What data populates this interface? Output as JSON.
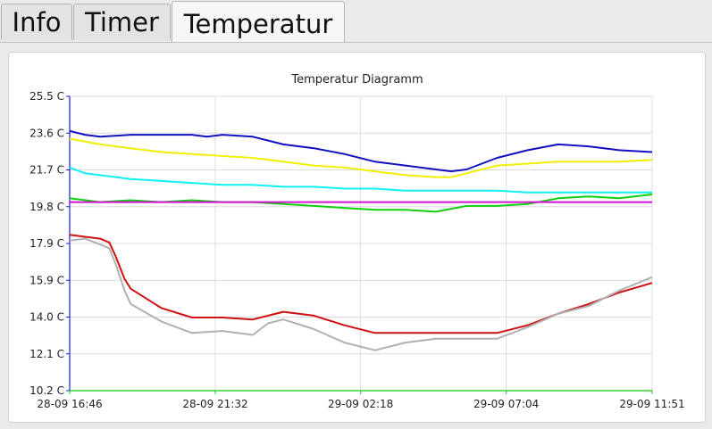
{
  "tabs": [
    {
      "label": "Info",
      "active": false
    },
    {
      "label": "Timer",
      "active": false
    },
    {
      "label": "Temperatur",
      "active": true
    }
  ],
  "chart_data": {
    "type": "line",
    "title": "Temperatur Diagramm",
    "xlabel": "",
    "ylabel": "",
    "grid": true,
    "legend": "none",
    "ylim": [
      10.2,
      25.5
    ],
    "y_ticks": [
      "25.5 C",
      "23.6 C",
      "21.7 C",
      "19.8 C",
      "17.9 C",
      "15.9 C",
      "14.0 C",
      "12.1 C",
      "10.2 C"
    ],
    "x_ticks": [
      "28-09 16:46",
      "28-09 21:32",
      "29-09 02:18",
      "29-09 07:04",
      "29-09 11:51"
    ],
    "x_hours": [
      0,
      4.77,
      9.53,
      14.3,
      19.08
    ],
    "series": [
      {
        "color": "#1010c0",
        "x": [
          0,
          0.5,
          1,
          2,
          3,
          4,
          4.5,
          5,
          6,
          7,
          8,
          9,
          10,
          11,
          12,
          12.5,
          13,
          14,
          15,
          16,
          17,
          18,
          19.08
        ],
        "y": [
          23.7,
          23.5,
          23.4,
          23.5,
          23.5,
          23.5,
          23.4,
          23.5,
          23.4,
          23.0,
          22.8,
          22.5,
          22.1,
          21.9,
          21.7,
          21.6,
          21.7,
          22.3,
          22.7,
          23.0,
          22.9,
          22.7,
          22.6
        ]
      },
      {
        "color": "#f0f000",
        "x": [
          0,
          1,
          2,
          3,
          4,
          5,
          6,
          7,
          8,
          9,
          10,
          11,
          12,
          12.5,
          13,
          14,
          15,
          16,
          17,
          18,
          19.08
        ],
        "y": [
          23.3,
          23.0,
          22.8,
          22.6,
          22.5,
          22.4,
          22.3,
          22.1,
          21.9,
          21.8,
          21.6,
          21.4,
          21.3,
          21.3,
          21.5,
          21.9,
          22.0,
          22.1,
          22.1,
          22.1,
          22.2
        ]
      },
      {
        "color": "#10f0f0",
        "x": [
          0,
          0.5,
          1,
          2,
          3,
          4,
          5,
          6,
          7,
          8,
          9,
          10,
          11,
          12,
          13,
          14,
          15,
          16,
          17,
          18,
          19.08
        ],
        "y": [
          21.8,
          21.5,
          21.4,
          21.2,
          21.1,
          21.0,
          20.9,
          20.9,
          20.8,
          20.8,
          20.7,
          20.7,
          20.6,
          20.6,
          20.6,
          20.6,
          20.5,
          20.5,
          20.5,
          20.5,
          20.5
        ]
      },
      {
        "color": "#10d010",
        "x": [
          0,
          1,
          2,
          3,
          4,
          5,
          6,
          7,
          8,
          9,
          10,
          11,
          12,
          13,
          14,
          15,
          16,
          17,
          18,
          19.08
        ],
        "y": [
          20.2,
          20.0,
          20.1,
          20.0,
          20.1,
          20.0,
          20.0,
          19.9,
          19.8,
          19.7,
          19.6,
          19.6,
          19.5,
          19.8,
          19.8,
          19.9,
          20.2,
          20.3,
          20.2,
          20.4
        ]
      },
      {
        "color": "#d010d0",
        "x": [
          0,
          19.08
        ],
        "y": [
          20.0,
          20.0
        ]
      },
      {
        "color": "#d01010",
        "x": [
          0,
          0.5,
          1,
          1.3,
          1.5,
          1.8,
          2,
          3,
          4,
          5,
          6,
          6.5,
          7,
          8,
          9,
          10,
          11,
          12,
          13,
          14,
          15,
          16,
          17,
          18,
          19.08
        ],
        "y": [
          18.3,
          18.2,
          18.1,
          17.9,
          17.2,
          16.0,
          15.5,
          14.5,
          14.0,
          14.0,
          13.9,
          14.1,
          14.3,
          14.1,
          13.6,
          13.2,
          13.2,
          13.2,
          13.2,
          13.2,
          13.6,
          14.2,
          14.7,
          15.3,
          15.8
        ]
      },
      {
        "color": "#b0b0b0",
        "x": [
          0,
          0.5,
          1,
          1.3,
          1.5,
          1.8,
          2,
          3,
          4,
          5,
          6,
          6.5,
          7,
          8,
          9,
          10,
          11,
          12,
          13,
          14,
          15,
          16,
          17,
          18,
          19.08
        ],
        "y": [
          18.0,
          18.1,
          17.8,
          17.6,
          16.8,
          15.4,
          14.7,
          13.8,
          13.2,
          13.3,
          13.1,
          13.7,
          13.9,
          13.4,
          12.7,
          12.3,
          12.7,
          12.9,
          12.9,
          12.9,
          13.5,
          14.2,
          14.6,
          15.4,
          16.1
        ]
      }
    ]
  }
}
